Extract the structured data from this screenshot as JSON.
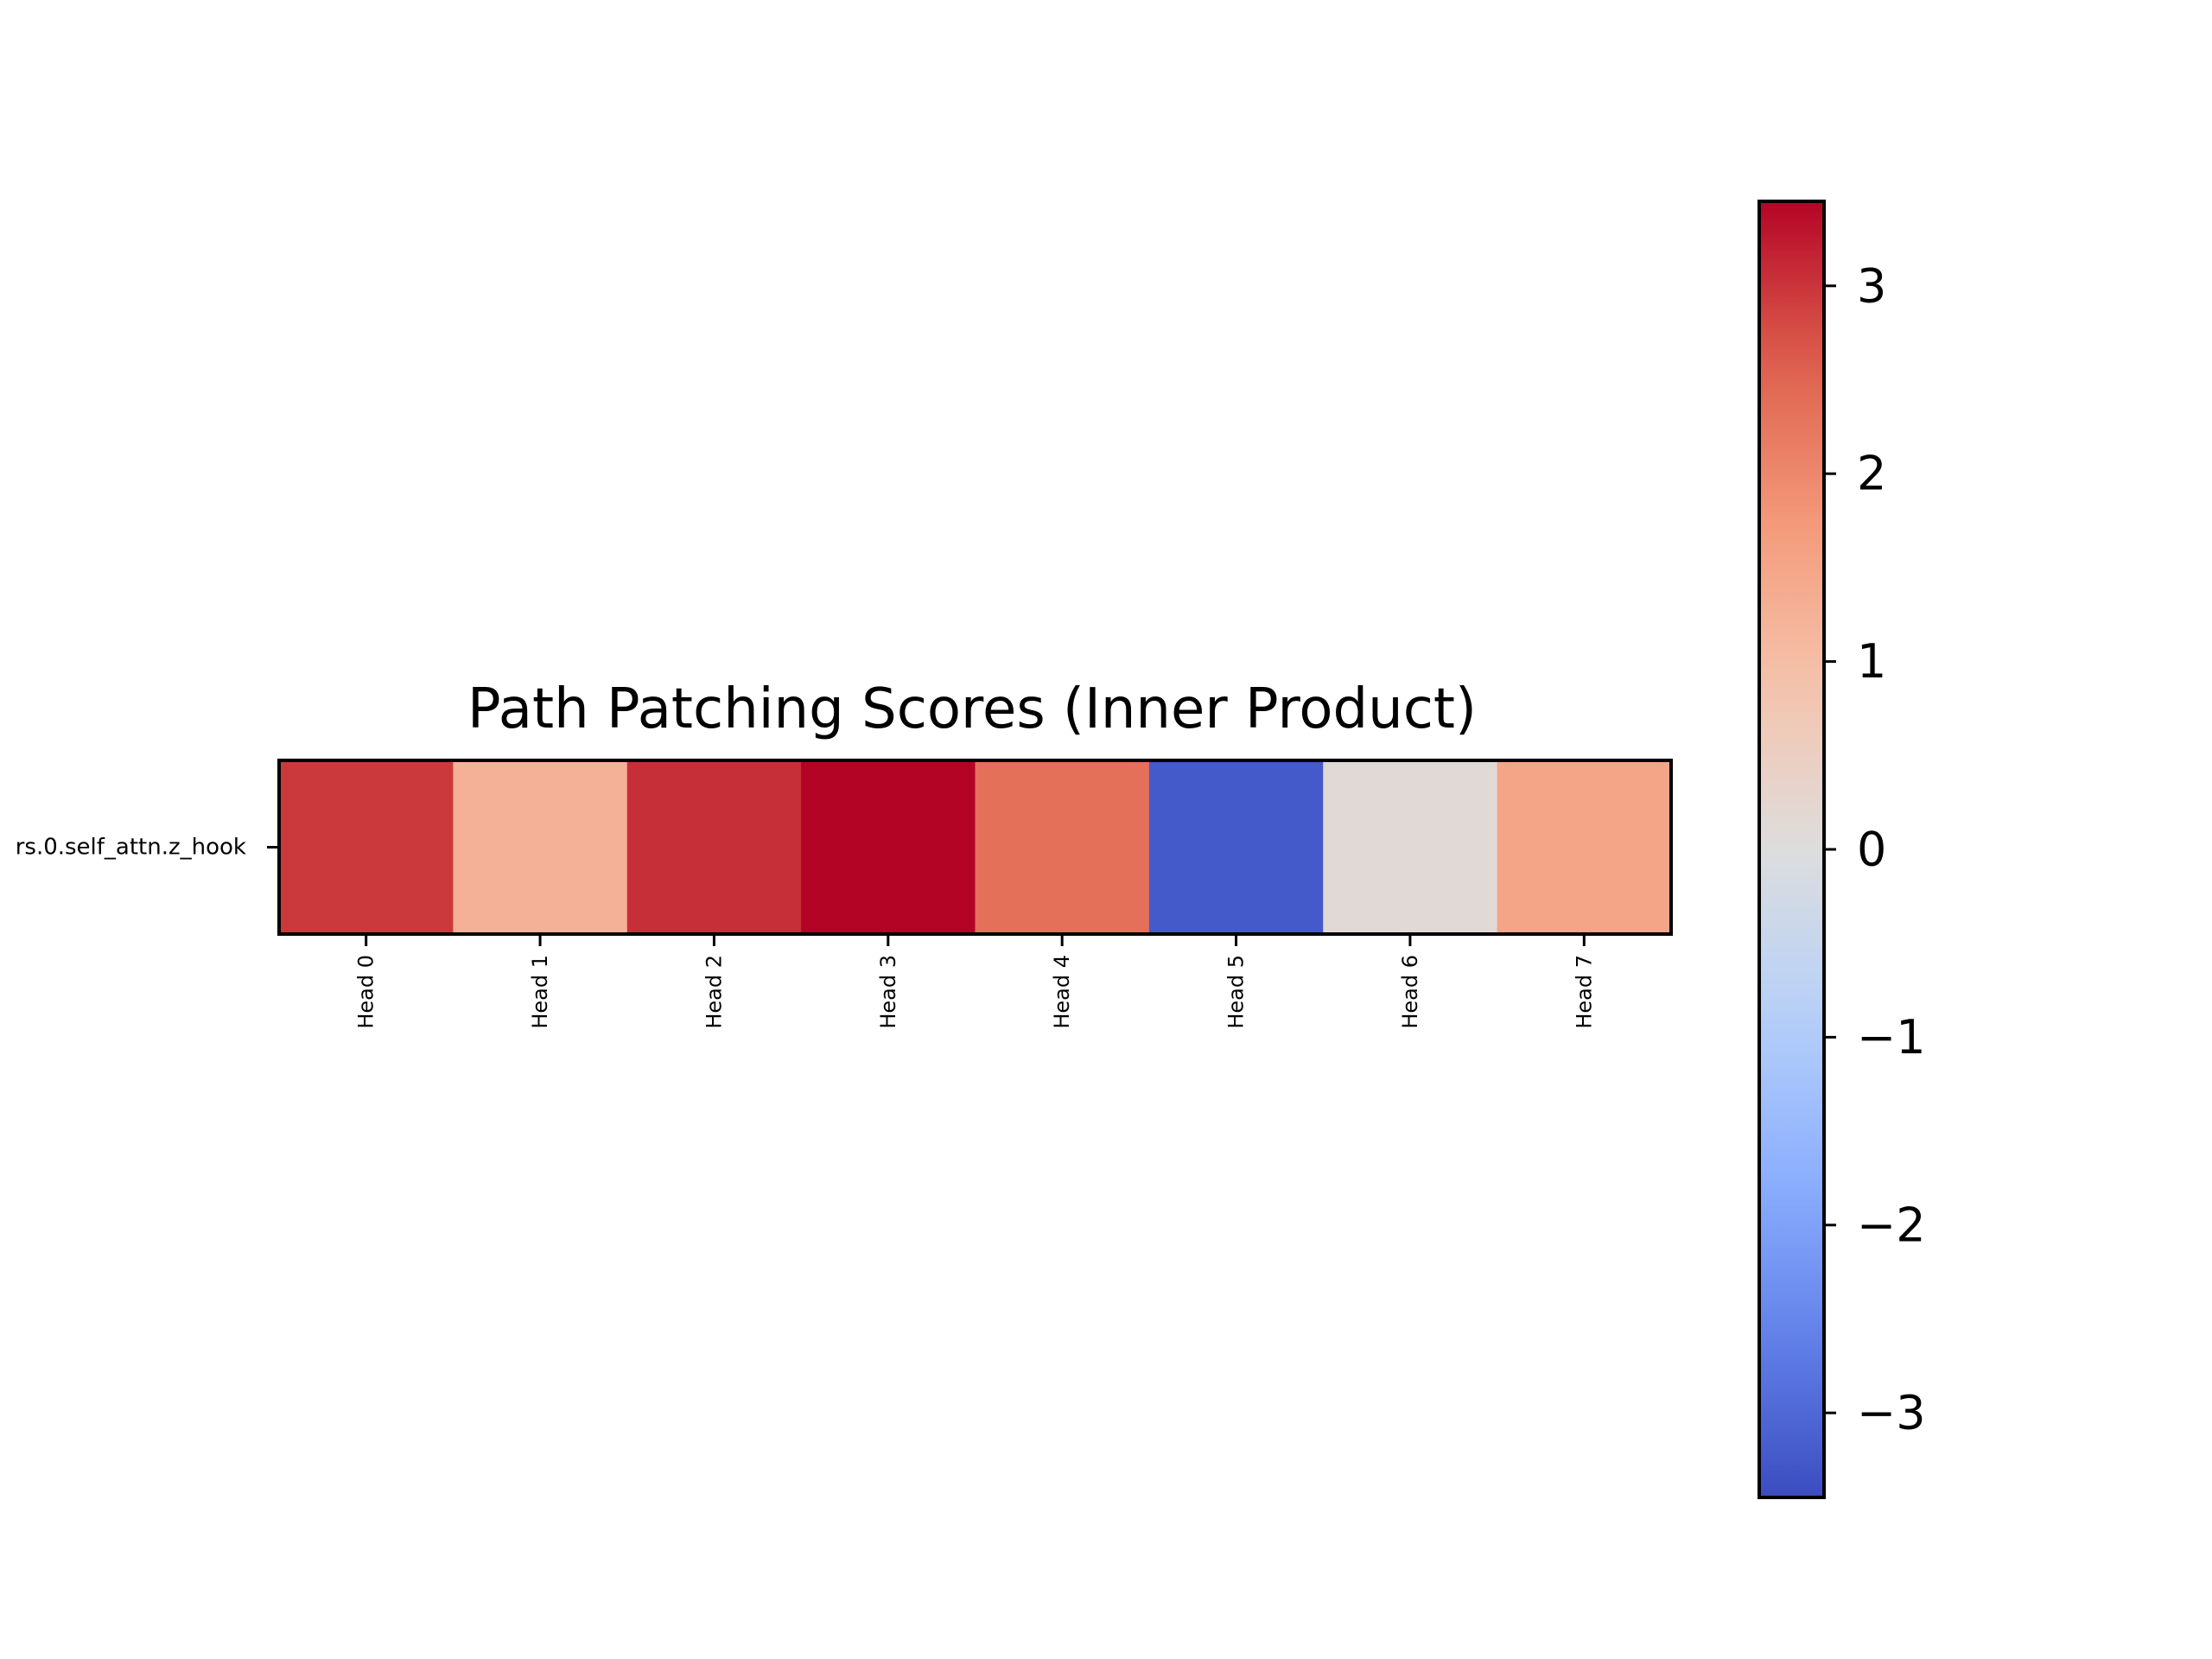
{
  "chart_data": {
    "type": "heatmap",
    "title": "Path Patching Scores (Inner Product)",
    "x_categories": [
      "Head 0",
      "Head 1",
      "Head 2",
      "Head 3",
      "Head 4",
      "Head 5",
      "Head 6",
      "Head 7"
    ],
    "y_categories": [
      "rs.0.self_attn.z_hook"
    ],
    "values": [
      [
        2.95,
        1.25,
        3.05,
        3.45,
        2.35,
        -3.25,
        0.15,
        1.5
      ]
    ],
    "colormap": "coolwarm",
    "vmin": -3.45,
    "vmax": 3.45,
    "colorbar": {
      "ticks": [
        3,
        2,
        1,
        0,
        -1,
        -2,
        -3
      ],
      "tick_labels": [
        "3",
        "2",
        "1",
        "0",
        "−1",
        "−2",
        "−3"
      ]
    },
    "xlabel": "",
    "ylabel": "",
    "legend": "colorbar-right"
  }
}
